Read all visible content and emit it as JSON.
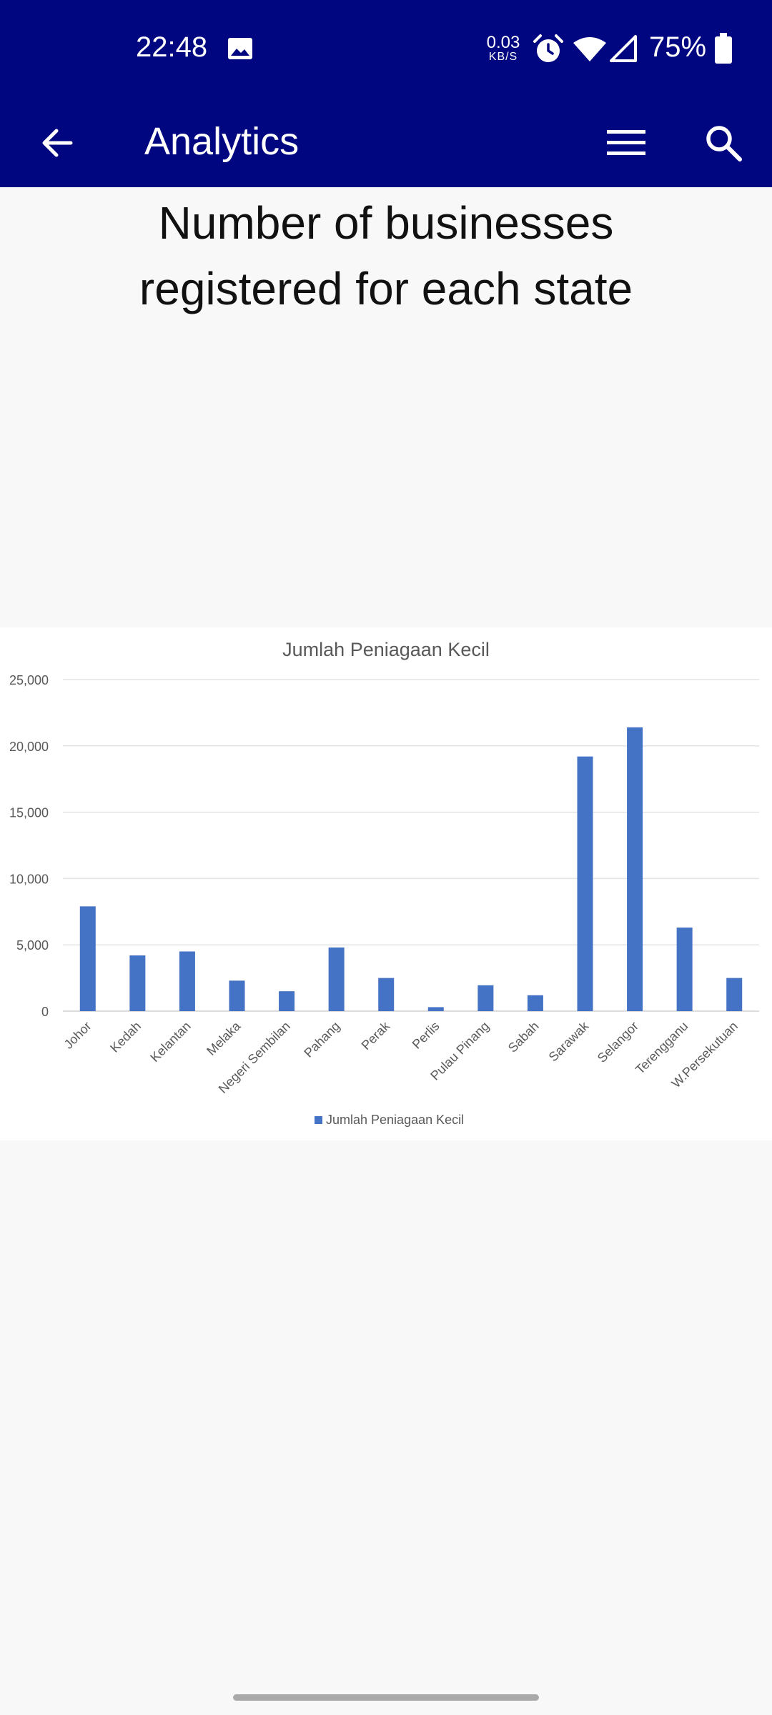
{
  "status_bar": {
    "time": "22:48",
    "net_speed_value": "0.03",
    "net_speed_unit": "KB/S",
    "battery": "75%",
    "icons": [
      "image-icon",
      "alarm-icon",
      "wifi-icon",
      "signal-icon",
      "battery-icon"
    ]
  },
  "app_bar": {
    "title": "Analytics",
    "background": "#00067f",
    "icons": [
      "back-arrow-icon",
      "menu-icon",
      "search-icon"
    ]
  },
  "page": {
    "heading": "Number of businesses registered for each state"
  },
  "chart_data": {
    "type": "bar",
    "title": "Jumlah Peniagaan Kecil",
    "xlabel": "",
    "ylabel": "",
    "categories": [
      "Johor",
      "Kedah",
      "Kelantan",
      "Melaka",
      "Negeri Sembilan",
      "Pahang",
      "Perak",
      "Perlis",
      "Pulau Pinang",
      "Sabah",
      "Sarawak",
      "Selangor",
      "Terengganu",
      "W.Persekutuan"
    ],
    "series": [
      {
        "name": "Jumlah Peniagaan Kecil",
        "values": [
          7900,
          4200,
          4500,
          2300,
          1500,
          4800,
          2500,
          300,
          1950,
          1200,
          19200,
          21400,
          6300,
          2500
        ],
        "color": "#4472c4"
      }
    ],
    "ylim": [
      0,
      25000
    ],
    "yticks": [
      "0",
      "5,000",
      "10,000",
      "15,000",
      "20,000",
      "25,000"
    ],
    "grid": true,
    "legend": "bottom"
  }
}
